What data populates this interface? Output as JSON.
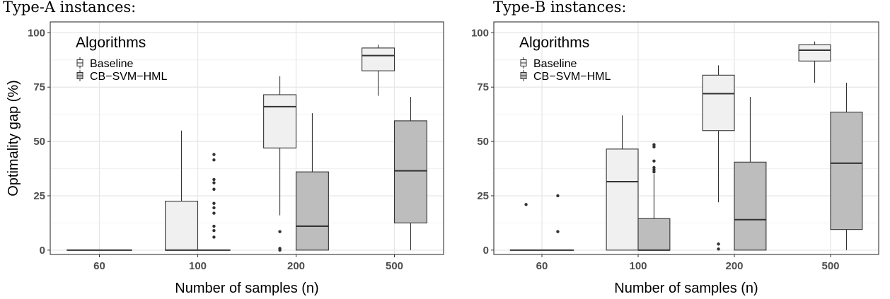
{
  "chart_data": [
    {
      "type": "box",
      "title": "Type-A instances:",
      "xlabel": "Number of samples (n)",
      "ylabel": "Optimality gap (%)",
      "categories": [
        "60",
        "100",
        "200",
        "500"
      ],
      "ylim": [
        -2,
        105
      ],
      "yticks": [
        0,
        25,
        50,
        75,
        100
      ],
      "grid": true,
      "legend": {
        "title": "Algorithms",
        "position": "top-left",
        "entries": [
          "Baseline",
          "CB−SVM−HML"
        ]
      },
      "series": [
        {
          "name": "Baseline",
          "color": "#f0f0f0",
          "boxes": [
            {
              "category": "60",
              "min": 0,
              "q1": 0,
              "median": 0,
              "q3": 0,
              "max": 0,
              "outliers": []
            },
            {
              "category": "100",
              "min": 0,
              "q1": 0,
              "median": 0,
              "q3": 22.5,
              "max": 55,
              "outliers": []
            },
            {
              "category": "200",
              "min": 16,
              "q1": 47,
              "median": 66,
              "q3": 71.5,
              "max": 80,
              "outliers": [
                8.5,
                0.8,
                0
              ]
            },
            {
              "category": "500",
              "min": 71,
              "q1": 82.5,
              "median": 89.5,
              "q3": 93,
              "max": 94.5,
              "outliers": []
            }
          ]
        },
        {
          "name": "CB−SVM−HML",
          "color": "#bdbdbd",
          "boxes": [
            {
              "category": "60",
              "min": 0,
              "q1": 0,
              "median": 0,
              "q3": 0,
              "max": 0,
              "outliers": []
            },
            {
              "category": "100",
              "min": 0,
              "q1": 0,
              "median": 0,
              "q3": 0,
              "max": 0,
              "outliers": [
                44,
                41.5,
                32.5,
                31,
                28,
                21.5,
                19.5,
                17,
                11,
                9,
                6
              ]
            },
            {
              "category": "200",
              "min": 0,
              "q1": 0,
              "median": 11,
              "q3": 36,
              "max": 63,
              "outliers": []
            },
            {
              "category": "500",
              "min": 0,
              "q1": 12.5,
              "median": 36.5,
              "q3": 59.5,
              "max": 70.5,
              "outliers": []
            }
          ]
        }
      ]
    },
    {
      "type": "box",
      "title": "Type-B instances:",
      "xlabel": "Number of samples (n)",
      "ylabel": "",
      "categories": [
        "60",
        "100",
        "200",
        "500"
      ],
      "ylim": [
        -2,
        105
      ],
      "yticks": [
        0,
        25,
        50,
        75,
        100
      ],
      "grid": true,
      "legend": {
        "title": "Algorithms",
        "position": "top-left",
        "entries": [
          "Baseline",
          "CB−SVM−HML"
        ]
      },
      "series": [
        {
          "name": "Baseline",
          "color": "#f0f0f0",
          "boxes": [
            {
              "category": "60",
              "min": 0,
              "q1": 0,
              "median": 0,
              "q3": 0,
              "max": 0,
              "outliers": [
                21
              ]
            },
            {
              "category": "100",
              "min": 0,
              "q1": 0,
              "median": 31.5,
              "q3": 46.5,
              "max": 62,
              "outliers": []
            },
            {
              "category": "200",
              "min": 22,
              "q1": 55,
              "median": 72,
              "q3": 80.5,
              "max": 85,
              "outliers": [
                2.8,
                0.5
              ]
            },
            {
              "category": "500",
              "min": 77,
              "q1": 87,
              "median": 92,
              "q3": 94.5,
              "max": 96,
              "outliers": []
            }
          ]
        },
        {
          "name": "CB−SVM−HML",
          "color": "#bdbdbd",
          "boxes": [
            {
              "category": "60",
              "min": 0,
              "q1": 0,
              "median": 0,
              "q3": 0,
              "max": 0,
              "outliers": [
                25,
                8.5
              ]
            },
            {
              "category": "100",
              "min": 0,
              "q1": 0,
              "median": 0,
              "q3": 14.5,
              "max": 35,
              "outliers": [
                48.5,
                47.5,
                41,
                38,
                37,
                36
              ]
            },
            {
              "category": "200",
              "min": 0,
              "q1": 0,
              "median": 14,
              "q3": 40.5,
              "max": 70.5,
              "outliers": []
            },
            {
              "category": "500",
              "min": 0,
              "q1": 9.5,
              "median": 40,
              "q3": 63.5,
              "max": 77,
              "outliers": []
            }
          ]
        }
      ]
    }
  ]
}
